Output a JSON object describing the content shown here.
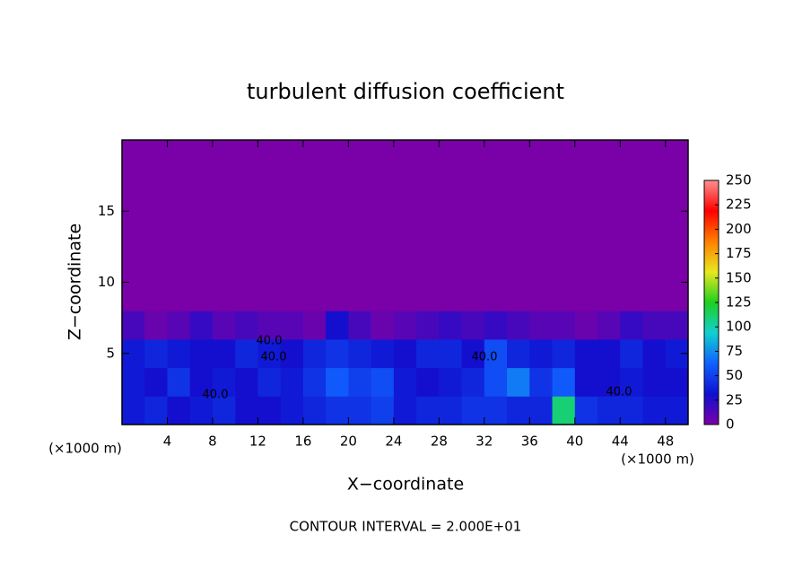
{
  "chart_data": {
    "type": "heatmap",
    "title": "turbulent diffusion coefficient",
    "x_label": "X−coordinate",
    "y_label": "Z−coordinate",
    "x_unit": "(×1000 m)",
    "y_unit": "(×1000 m)",
    "annotation": "CONTOUR INTERVAL = 2.000E+01",
    "contour_labels": [
      "40.0",
      "40.0",
      "40.0",
      "40.0",
      "40.0"
    ],
    "xlim": [
      0,
      50
    ],
    "ylim": [
      0,
      20
    ],
    "xticks": [
      4,
      8,
      12,
      16,
      20,
      24,
      28,
      32,
      36,
      40,
      44,
      48
    ],
    "yticks": [
      5,
      10,
      15
    ],
    "x": [
      1,
      3,
      5,
      7,
      9,
      11,
      13,
      15,
      17,
      19,
      21,
      23,
      25,
      27,
      29,
      31,
      33,
      35,
      37,
      39,
      41,
      43,
      45,
      47,
      49
    ],
    "y": [
      1,
      3,
      5,
      7,
      9,
      11,
      13,
      15,
      17,
      19
    ],
    "values": [
      [
        35,
        40,
        30,
        35,
        40,
        30,
        30,
        35,
        40,
        45,
        45,
        50,
        35,
        40,
        40,
        45,
        45,
        40,
        40,
        110,
        45,
        40,
        40,
        35,
        35
      ],
      [
        35,
        30,
        45,
        30,
        35,
        30,
        40,
        35,
        45,
        60,
        50,
        55,
        35,
        30,
        35,
        40,
        55,
        70,
        45,
        60,
        30,
        30,
        35,
        30,
        30
      ],
      [
        35,
        40,
        35,
        30,
        30,
        40,
        35,
        30,
        40,
        45,
        40,
        35,
        30,
        40,
        40,
        30,
        55,
        40,
        35,
        40,
        30,
        30,
        40,
        30,
        35
      ],
      [
        15,
        5,
        10,
        20,
        10,
        15,
        10,
        10,
        5,
        30,
        15,
        5,
        10,
        15,
        20,
        15,
        20,
        15,
        10,
        10,
        5,
        10,
        20,
        15,
        15
      ],
      [
        0,
        0,
        0,
        0,
        0,
        0,
        0,
        0,
        0,
        0,
        0,
        0,
        0,
        0,
        0,
        0,
        0,
        0,
        0,
        0,
        0,
        0,
        0,
        0,
        0
      ],
      [
        0,
        0,
        0,
        0,
        0,
        0,
        0,
        0,
        0,
        0,
        0,
        0,
        0,
        0,
        0,
        0,
        0,
        0,
        0,
        0,
        0,
        0,
        0,
        0,
        0
      ],
      [
        0,
        0,
        0,
        0,
        0,
        0,
        0,
        0,
        0,
        0,
        0,
        0,
        0,
        0,
        0,
        0,
        0,
        0,
        0,
        0,
        0,
        0,
        0,
        0,
        0
      ],
      [
        0,
        0,
        0,
        0,
        0,
        0,
        0,
        0,
        0,
        0,
        0,
        0,
        0,
        0,
        0,
        0,
        0,
        0,
        0,
        0,
        0,
        0,
        0,
        0,
        0
      ],
      [
        0,
        0,
        0,
        0,
        0,
        0,
        0,
        0,
        0,
        0,
        0,
        0,
        0,
        0,
        0,
        0,
        0,
        0,
        0,
        0,
        0,
        0,
        0,
        0,
        0
      ],
      [
        0,
        0,
        0,
        0,
        0,
        0,
        0,
        0,
        0,
        0,
        0,
        0,
        0,
        0,
        0,
        0,
        0,
        0,
        0,
        0,
        0,
        0,
        0,
        0,
        0
      ]
    ],
    "clim": [
      0,
      250
    ],
    "cticks": [
      0,
      25,
      50,
      75,
      100,
      125,
      150,
      175,
      200,
      225,
      250
    ],
    "colormap": [
      "#7a00a8",
      "#1010d0",
      "#1060ff",
      "#10d0d0",
      "#20d020",
      "#e8e820",
      "#ff8000",
      "#ff0000",
      "#ff9090"
    ]
  }
}
